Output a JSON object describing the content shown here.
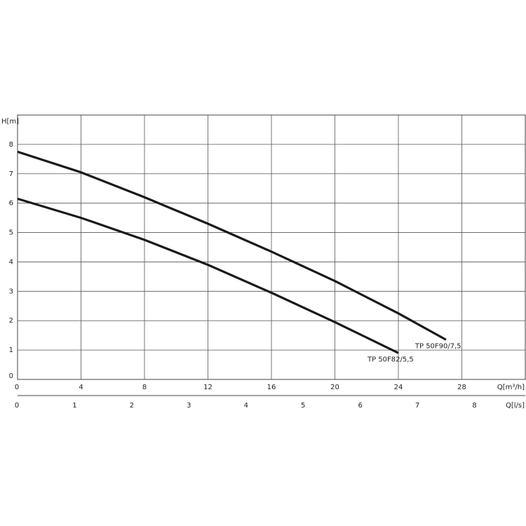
{
  "chart_data": {
    "type": "line",
    "ylabel": "H[m]",
    "xlabel": "Q[m³/h]",
    "x2label": "Q[l/s]",
    "xlim": [
      0,
      32
    ],
    "ylim": [
      0,
      9
    ],
    "x2lim": [
      0,
      8.889
    ],
    "xticks": [
      "0",
      "4",
      "8",
      "12",
      "16",
      "20",
      "24",
      "28"
    ],
    "yticks": [
      "0",
      "1",
      "2",
      "3",
      "4",
      "5",
      "6",
      "7",
      "8"
    ],
    "x2ticks": [
      "0",
      "1",
      "2",
      "3",
      "4",
      "5",
      "6",
      "7",
      "8"
    ],
    "grid": true,
    "series": [
      {
        "name": "TP 50F90/7,5",
        "x": [
          0,
          4,
          8,
          12,
          16,
          20,
          24,
          27
        ],
        "y": [
          7.75,
          7.05,
          6.2,
          5.3,
          4.35,
          3.35,
          2.25,
          1.35
        ]
      },
      {
        "name": "TP 50F82/5,5",
        "x": [
          0,
          4,
          8,
          12,
          16,
          20,
          24
        ],
        "y": [
          6.15,
          5.5,
          4.75,
          3.9,
          2.95,
          1.95,
          0.9
        ]
      }
    ]
  },
  "colors": {
    "line": "#1a1a1a",
    "grid": "#555555",
    "text": "#222222"
  }
}
